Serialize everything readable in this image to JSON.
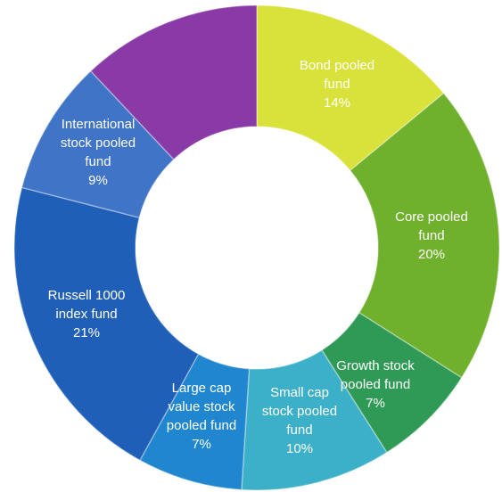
{
  "chart_data": {
    "type": "pie",
    "donut": true,
    "title": "",
    "unlabeled_slice_color": "#8a3aa6",
    "slices": [
      {
        "label_lines": [
          "Bond pooled",
          "fund",
          "14%"
        ],
        "value": 14,
        "color": "#d9e23a"
      },
      {
        "label_lines": [
          "Core pooled",
          "fund",
          "20%"
        ],
        "value": 20,
        "color": "#6fb02c"
      },
      {
        "label_lines": [
          "Growth stock",
          "pooled fund",
          "7%"
        ],
        "value": 7,
        "color": "#2f9a55"
      },
      {
        "label_lines": [
          "Small cap",
          "stock pooled",
          "fund",
          "10%"
        ],
        "value": 10,
        "color": "#3bb0c8"
      },
      {
        "label_lines": [
          "Large cap",
          "value stock",
          "pooled fund",
          "7%"
        ],
        "value": 7,
        "color": "#1f86cf"
      },
      {
        "label_lines": [
          "Russell 1000",
          "index fund",
          "21%"
        ],
        "value": 21,
        "color": "#1f5fb7"
      },
      {
        "label_lines": [
          "International",
          "stock pooled",
          "fund",
          "9%"
        ],
        "value": 9,
        "color": "#3f74c6"
      },
      {
        "label_lines": [],
        "value": 12,
        "color": "#8a3aa6"
      }
    ]
  }
}
